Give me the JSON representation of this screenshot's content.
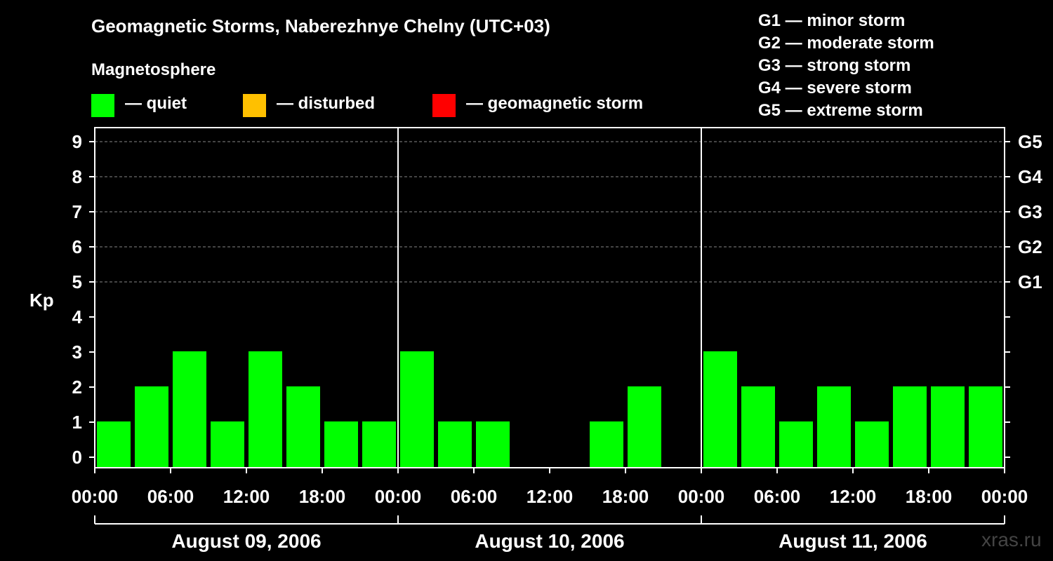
{
  "title": "Geomagnetic Storms, Naberezhnye Chelny (UTC+03)",
  "magnetosphere_label": "Magnetosphere",
  "legend": [
    {
      "label": "— quiet",
      "color": "#00ff00"
    },
    {
      "label": "— disturbed",
      "color": "#ffc000"
    },
    {
      "label": "— geomagnetic storm",
      "color": "#ff0000"
    }
  ],
  "storm_scale": [
    "G1 — minor storm",
    "G2 — moderate storm",
    "G3 — strong storm",
    "G4 — severe storm",
    "G5 — extreme storm"
  ],
  "watermark": "xras.ru",
  "chart_data": {
    "type": "bar",
    "ylabel": "Kp",
    "ylim": [
      0,
      9
    ],
    "y_ticks": [
      "0",
      "1",
      "2",
      "3",
      "4",
      "5",
      "6",
      "7",
      "8",
      "9"
    ],
    "right_axis_labels": [
      {
        "kp": 5,
        "label": "G1"
      },
      {
        "kp": 6,
        "label": "G2"
      },
      {
        "kp": 7,
        "label": "G3"
      },
      {
        "kp": 8,
        "label": "G4"
      },
      {
        "kp": 9,
        "label": "G5"
      }
    ],
    "x_tick_labels": [
      "00:00",
      "06:00",
      "12:00",
      "18:00",
      "00:00",
      "06:00",
      "12:00",
      "18:00",
      "00:00",
      "06:00",
      "12:00",
      "18:00",
      "00:00"
    ],
    "days": [
      {
        "label": "August 09, 2006",
        "values": [
          1,
          2,
          3,
          1,
          3,
          2,
          1,
          1
        ]
      },
      {
        "label": "August 10, 2006",
        "values": [
          3,
          1,
          1,
          0,
          0,
          1,
          2,
          0
        ]
      },
      {
        "label": "August 11, 2006",
        "values": [
          3,
          2,
          1,
          2,
          1,
          2,
          2,
          2
        ]
      }
    ],
    "interval_hours": 3,
    "gridlines_at_kp": [
      5,
      6,
      7,
      8,
      9
    ],
    "bar_color": "#00ff00"
  }
}
